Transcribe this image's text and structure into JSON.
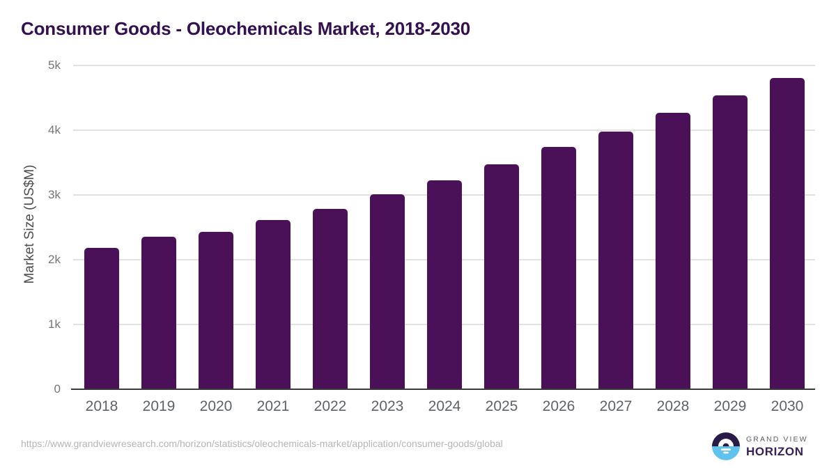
{
  "header": {
    "title": "Consumer Goods - Oleochemicals Market, 2018-2030",
    "title_color": "#331050"
  },
  "chart_data": {
    "type": "bar",
    "title": "Consumer Goods - Oleochemicals Market, 2018-2030",
    "categories": [
      "2018",
      "2019",
      "2020",
      "2021",
      "2022",
      "2023",
      "2024",
      "2025",
      "2026",
      "2027",
      "2028",
      "2029",
      "2030"
    ],
    "values": [
      2180,
      2350,
      2430,
      2610,
      2790,
      3010,
      3230,
      3470,
      3740,
      3980,
      4270,
      4540,
      4810
    ],
    "xlabel": "",
    "ylabel": "Market Size (US$M)",
    "ylim": [
      0,
      5000
    ],
    "yticks": [
      {
        "value": 0,
        "label": "0"
      },
      {
        "value": 1000,
        "label": "1k"
      },
      {
        "value": 2000,
        "label": "2k"
      },
      {
        "value": 3000,
        "label": "3k"
      },
      {
        "value": 4000,
        "label": "4k"
      },
      {
        "value": 5000,
        "label": "5k"
      }
    ],
    "grid": true,
    "legend": false,
    "bar_color": "#4a1159"
  },
  "footer": {
    "source_url": "https://www.grandviewresearch.com/horizon/statistics/oleochemicals-market/application/consumer-goods/global",
    "logo": {
      "brand_line1": "GRAND VIEW",
      "brand_line2": "HORIZON",
      "icon_dark_color": "#2a1a47",
      "icon_blue_color": "#5fc3ee"
    }
  }
}
